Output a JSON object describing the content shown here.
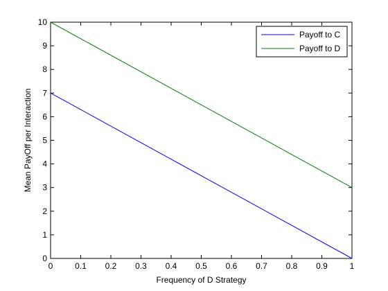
{
  "figure": {
    "background": "#ffffff",
    "axes_background": "#ffffff",
    "axes_color": "#000000"
  },
  "chart_data": {
    "type": "line",
    "title": "",
    "xlabel": "Frequency of D Strategy",
    "ylabel": "Mean PayOff per Interaction",
    "xlim": [
      0,
      1
    ],
    "ylim": [
      0,
      10
    ],
    "grid": false,
    "legend_position": "top-right",
    "x_ticks": [
      0,
      0.1,
      0.2,
      0.3,
      0.4,
      0.5,
      0.6,
      0.7,
      0.8,
      0.9,
      1
    ],
    "x_tick_labels": [
      "0",
      "0.1",
      "0.2",
      "0.3",
      "0.4",
      "0.5",
      "0.6",
      "0.7",
      "0.8",
      "0.9",
      "1"
    ],
    "y_ticks": [
      0,
      1,
      2,
      3,
      4,
      5,
      6,
      7,
      8,
      9,
      10
    ],
    "y_tick_labels": [
      "0",
      "1",
      "2",
      "3",
      "4",
      "5",
      "6",
      "7",
      "8",
      "9",
      "10"
    ],
    "series": [
      {
        "name": "Payoff to C",
        "color": "#0000ff",
        "x": [
          0,
          1
        ],
        "y": [
          7,
          0
        ]
      },
      {
        "name": "Payoff to D",
        "color": "#007f00",
        "x": [
          0,
          1
        ],
        "y": [
          10,
          3
        ]
      }
    ]
  }
}
